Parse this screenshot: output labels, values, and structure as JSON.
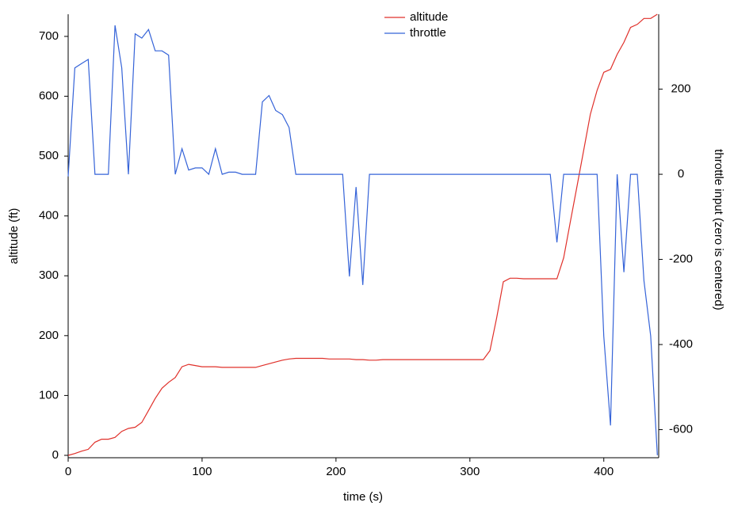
{
  "chart_data": {
    "type": "line",
    "xlabel": "time (s)",
    "ylabel": "altitude (ft)",
    "y2label": "throttle input (zero is centered)",
    "x": [
      0,
      5,
      10,
      15,
      20,
      25,
      30,
      35,
      40,
      45,
      50,
      55,
      60,
      65,
      70,
      75,
      80,
      85,
      90,
      95,
      100,
      105,
      110,
      115,
      120,
      125,
      130,
      135,
      140,
      145,
      150,
      155,
      160,
      165,
      170,
      175,
      180,
      185,
      190,
      195,
      200,
      205,
      210,
      215,
      220,
      225,
      230,
      235,
      240,
      245,
      250,
      255,
      260,
      265,
      270,
      275,
      280,
      285,
      290,
      295,
      300,
      305,
      310,
      315,
      320,
      325,
      330,
      335,
      340,
      345,
      350,
      355,
      360,
      365,
      370,
      375,
      380,
      385,
      390,
      395,
      400,
      405,
      410,
      415,
      420,
      425,
      430,
      435,
      440
    ],
    "series": [
      {
        "name": "altitude",
        "color": "#e0302a",
        "axis": "y",
        "values": [
          0,
          3,
          7,
          10,
          22,
          27,
          27,
          30,
          40,
          45,
          47,
          55,
          75,
          95,
          112,
          122,
          130,
          148,
          152,
          150,
          148,
          148,
          148,
          147,
          147,
          147,
          147,
          147,
          147,
          150,
          153,
          156,
          159,
          161,
          162,
          162,
          162,
          162,
          162,
          161,
          161,
          161,
          161,
          160,
          160,
          159,
          159,
          160,
          160,
          160,
          160,
          160,
          160,
          160,
          160,
          160,
          160,
          160,
          160,
          160,
          160,
          160,
          160,
          175,
          230,
          290,
          296,
          296,
          295,
          295,
          295,
          295,
          295,
          295,
          330,
          390,
          450,
          510,
          570,
          610,
          640,
          645,
          670,
          690,
          715,
          720,
          730,
          730,
          737
        ]
      },
      {
        "name": "throttle",
        "color": "#3563d8",
        "axis": "y2",
        "values": [
          -5,
          250,
          260,
          270,
          0,
          0,
          0,
          350,
          250,
          0,
          330,
          320,
          340,
          290,
          290,
          280,
          0,
          60,
          10,
          15,
          15,
          0,
          60,
          0,
          5,
          5,
          0,
          0,
          0,
          170,
          185,
          150,
          140,
          110,
          0,
          0,
          0,
          0,
          0,
          0,
          0,
          0,
          -240,
          -30,
          -260,
          0,
          0,
          0,
          0,
          0,
          0,
          0,
          0,
          0,
          0,
          0,
          0,
          0,
          0,
          0,
          0,
          0,
          0,
          0,
          0,
          0,
          0,
          0,
          0,
          0,
          0,
          0,
          0,
          -160,
          0,
          0,
          0,
          0,
          0,
          0,
          -380,
          -590,
          0,
          -230,
          0,
          0,
          -250,
          -380,
          -660
        ]
      }
    ],
    "xlim": [
      0,
      441
    ],
    "xticks": [
      0,
      100,
      200,
      300,
      400
    ],
    "ylim": [
      -4,
      737
    ],
    "yticks": [
      0,
      100,
      200,
      300,
      400,
      500,
      600,
      700
    ],
    "y2lim": [
      -666,
      376
    ],
    "y2ticks": [
      -600,
      -400,
      -200,
      0,
      200
    ],
    "legend": "top"
  }
}
